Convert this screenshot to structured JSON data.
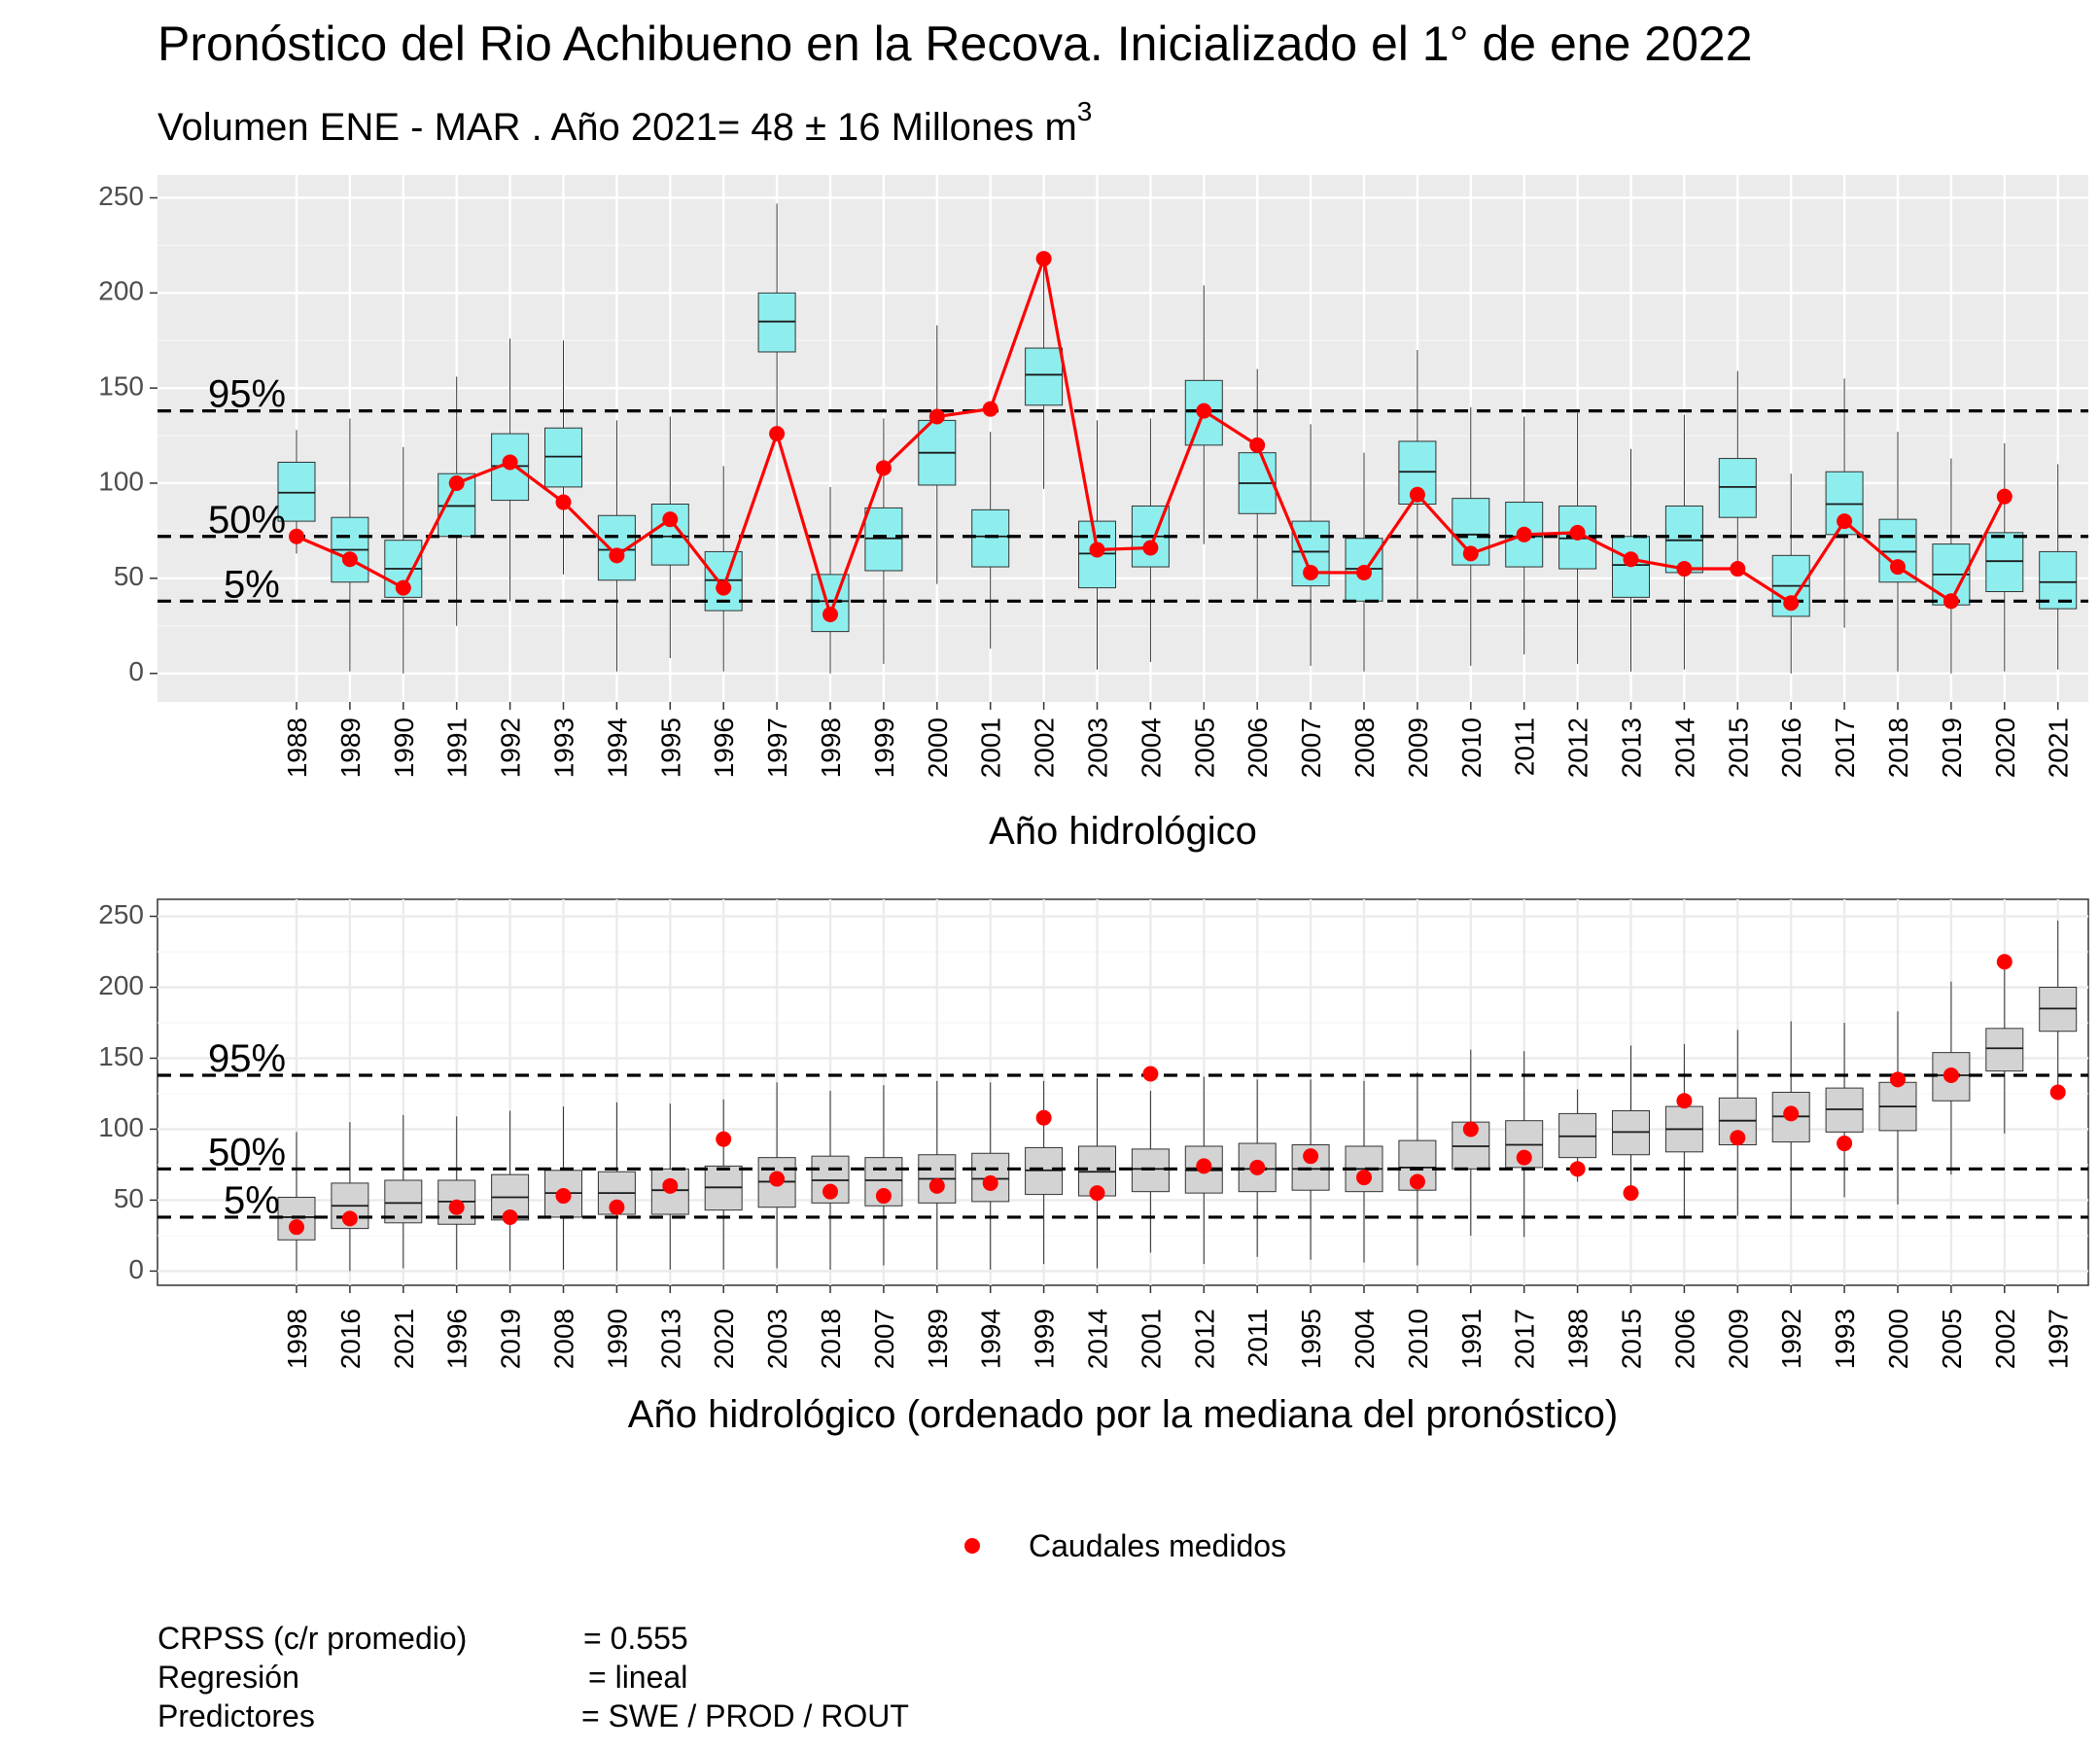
{
  "chart_data": {
    "title": "Pronóstico del Rio Achibueno en la Recova. Inicializado el 1° de ene 2022",
    "subtitle": "Volumen ENE - MAR . Año 2021= 48 ± 16 Millones m",
    "subtitle_superscript": "3",
    "reference_lines": [
      {
        "label": "95%",
        "value": 138
      },
      {
        "label": "50%",
        "value": 72
      },
      {
        "label": "5%",
        "value": 38
      }
    ],
    "legend": {
      "label": "Caudales medidos",
      "color": "#ff0000",
      "position": "bottom"
    },
    "colors": {
      "box_top": "#8eeeee",
      "box_bottom": "#d3d3d3",
      "observed": "#ff0000",
      "highlight_year": "#ff0000"
    },
    "panels": [
      {
        "type": "boxplot+line",
        "xlabel": "Año hidrológico",
        "ylabel": "",
        "ylim": [
          -15,
          262
        ],
        "yticks": [
          0,
          50,
          100,
          150,
          200,
          250
        ],
        "grid": true,
        "years": [
          "1988",
          "1989",
          "1990",
          "1991",
          "1992",
          "1993",
          "1994",
          "1995",
          "1996",
          "1997",
          "1998",
          "1999",
          "2000",
          "2001",
          "2002",
          "2003",
          "2004",
          "2005",
          "2006",
          "2007",
          "2008",
          "2009",
          "2010",
          "2011",
          "2012",
          "2013",
          "2014",
          "2015",
          "2016",
          "2017",
          "2018",
          "2019",
          "2020",
          "2021"
        ]
      },
      {
        "type": "boxplot+scatter",
        "xlabel": "Año hidrológico (ordenado por la mediana del pronóstico)",
        "ylabel": "",
        "ylim": [
          -10,
          262
        ],
        "yticks": [
          0,
          50,
          100,
          150,
          200,
          250
        ],
        "grid": true,
        "highlight": "2021",
        "years": [
          "1998",
          "2016",
          "2021",
          "1996",
          "2019",
          "2008",
          "1990",
          "2013",
          "2020",
          "2003",
          "2018",
          "2007",
          "1989",
          "1994",
          "1999",
          "2014",
          "2001",
          "2012",
          "2011",
          "1995",
          "2004",
          "2010",
          "1991",
          "2017",
          "1988",
          "2015",
          "2006",
          "2009",
          "1992",
          "1993",
          "2000",
          "2005",
          "2002",
          "1997"
        ]
      }
    ],
    "series": {
      "1988": {
        "wlo": 63,
        "q1": 80,
        "med": 95,
        "q3": 111,
        "whi": 128,
        "obs": 72
      },
      "1989": {
        "wlo": 1,
        "q1": 48,
        "med": 65,
        "q3": 82,
        "whi": 134,
        "obs": 60
      },
      "1990": {
        "wlo": 0,
        "q1": 40,
        "med": 55,
        "q3": 70,
        "whi": 119,
        "obs": 45
      },
      "1991": {
        "wlo": 25,
        "q1": 72,
        "med": 88,
        "q3": 105,
        "whi": 156,
        "obs": 100
      },
      "1992": {
        "wlo": 38,
        "q1": 91,
        "med": 109,
        "q3": 126,
        "whi": 176,
        "obs": 111
      },
      "1993": {
        "wlo": 52,
        "q1": 98,
        "med": 114,
        "q3": 129,
        "whi": 175,
        "obs": 90
      },
      "1994": {
        "wlo": 1,
        "q1": 49,
        "med": 65,
        "q3": 83,
        "whi": 133,
        "obs": 62
      },
      "1995": {
        "wlo": 8,
        "q1": 57,
        "med": 72,
        "q3": 89,
        "whi": 135,
        "obs": 81
      },
      "1996": {
        "wlo": 1,
        "q1": 33,
        "med": 49,
        "q3": 64,
        "whi": 109,
        "obs": 45
      },
      "1997": {
        "wlo": 125,
        "q1": 169,
        "med": 185,
        "q3": 200,
        "whi": 247,
        "obs": 126
      },
      "1998": {
        "wlo": 0,
        "q1": 22,
        "med": 38,
        "q3": 52,
        "whi": 98,
        "obs": 31
      },
      "1999": {
        "wlo": 5,
        "q1": 54,
        "med": 71,
        "q3": 87,
        "whi": 134,
        "obs": 108
      },
      "2000": {
        "wlo": 47,
        "q1": 99,
        "med": 116,
        "q3": 133,
        "whi": 183,
        "obs": 135
      },
      "2001": {
        "wlo": 13,
        "q1": 56,
        "med": 72,
        "q3": 86,
        "whi": 127,
        "obs": 139
      },
      "2002": {
        "wlo": 97,
        "q1": 141,
        "med": 157,
        "q3": 171,
        "whi": 217,
        "obs": 218
      },
      "2003": {
        "wlo": 2,
        "q1": 45,
        "med": 63,
        "q3": 80,
        "whi": 133,
        "obs": 65
      },
      "2004": {
        "wlo": 6,
        "q1": 56,
        "med": 72,
        "q3": 88,
        "whi": 134,
        "obs": 66
      },
      "2005": {
        "wlo": 68,
        "q1": 120,
        "med": 138,
        "q3": 154,
        "whi": 204,
        "obs": 138
      },
      "2006": {
        "wlo": 39,
        "q1": 84,
        "med": 100,
        "q3": 116,
        "whi": 160,
        "obs": 120
      },
      "2007": {
        "wlo": 4,
        "q1": 46,
        "med": 64,
        "q3": 80,
        "whi": 131,
        "obs": 53
      },
      "2008": {
        "wlo": 1,
        "q1": 38,
        "med": 55,
        "q3": 71,
        "whi": 116,
        "obs": 53
      },
      "2009": {
        "wlo": 39,
        "q1": 89,
        "med": 106,
        "q3": 122,
        "whi": 170,
        "obs": 94
      },
      "2010": {
        "wlo": 4,
        "q1": 57,
        "med": 73,
        "q3": 92,
        "whi": 140,
        "obs": 63
      },
      "2011": {
        "wlo": 10,
        "q1": 56,
        "med": 72,
        "q3": 90,
        "whi": 135,
        "obs": 73
      },
      "2012": {
        "wlo": 5,
        "q1": 55,
        "med": 71,
        "q3": 88,
        "whi": 137,
        "obs": 74
      },
      "2013": {
        "wlo": 1,
        "q1": 40,
        "med": 57,
        "q3": 72,
        "whi": 118,
        "obs": 60
      },
      "2014": {
        "wlo": 2,
        "q1": 53,
        "med": 70,
        "q3": 88,
        "whi": 136,
        "obs": 55
      },
      "2015": {
        "wlo": 51,
        "q1": 82,
        "med": 98,
        "q3": 113,
        "whi": 159,
        "obs": 55
      },
      "2016": {
        "wlo": 0,
        "q1": 30,
        "med": 46,
        "q3": 62,
        "whi": 105,
        "obs": 37
      },
      "2017": {
        "wlo": 24,
        "q1": 73,
        "med": 89,
        "q3": 106,
        "whi": 155,
        "obs": 80
      },
      "2018": {
        "wlo": 1,
        "q1": 48,
        "med": 64,
        "q3": 81,
        "whi": 127,
        "obs": 56
      },
      "2019": {
        "wlo": 0,
        "q1": 36,
        "med": 52,
        "q3": 68,
        "whi": 113,
        "obs": 38
      },
      "2020": {
        "wlo": 1,
        "q1": 43,
        "med": 59,
        "q3": 74,
        "whi": 121,
        "obs": 93
      },
      "2021": {
        "wlo": 2,
        "q1": 34,
        "med": 48,
        "q3": 64,
        "whi": 110,
        "obs": null
      }
    }
  },
  "stats": [
    {
      "label": "CRPSS (c/r promedio)",
      "value": "= 0.555"
    },
    {
      "label": "Regresión",
      "value": "= lineal"
    },
    {
      "label": "Predictores",
      "value": "= SWE / PROD / ROUT"
    }
  ]
}
